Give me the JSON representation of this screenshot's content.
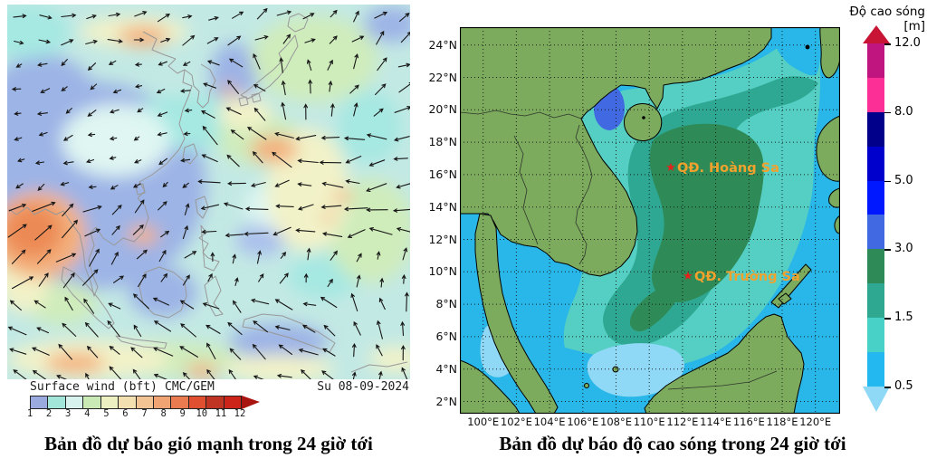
{
  "left": {
    "legend_label": "Surface wind (bft)",
    "legend_model": "CMC/GEM",
    "legend_date": "Su 08-09-2024",
    "scale_ticks": [
      "1",
      "2",
      "3",
      "4",
      "5",
      "6",
      "7",
      "8",
      "9",
      "10",
      "11",
      "12"
    ],
    "scale_colors": [
      "#9aaade",
      "#a2e6da",
      "#d8f2ee",
      "#c9eab5",
      "#edf0c0",
      "#f3e0b0",
      "#f3c493",
      "#f0a473",
      "#ea7a50",
      "#e14f31",
      "#c03424",
      "#cc2418"
    ],
    "scale_arrow_color": "#a81410",
    "caption": "Bản đồ dự báo gió mạnh trong 24 giờ tới"
  },
  "right": {
    "colorbar_title": "Độ cao sóng [m]",
    "colorbar_ticks": [
      "12.0",
      "8.0",
      "5.0",
      "3.0",
      "1.5",
      "0.5"
    ],
    "colorbar_colors": [
      "#c0147e",
      "#fb2f96",
      "#00008b",
      "#0000cd",
      "#0018ff",
      "#4169e1",
      "#2e8b57",
      "#2ea890",
      "#48d1c6",
      "#24b8f0"
    ],
    "colorbar_top_arrow": "#c81535",
    "colorbar_bottom_arrow": "#8fd9f6",
    "lat_labels": [
      "24°N",
      "22°N",
      "20°N",
      "18°N",
      "16°N",
      "14°N",
      "12°N",
      "10°N",
      "8°N",
      "6°N",
      "4°N",
      "2°N"
    ],
    "lon_labels": [
      "100°E",
      "102°E",
      "104°E",
      "106°E",
      "108°E",
      "110°E",
      "112°E",
      "114°E",
      "116°E",
      "118°E",
      "120°E"
    ],
    "markers": [
      {
        "label": "QĐ. Hoàng Sa"
      },
      {
        "label": "QĐ. Trường Sa"
      }
    ],
    "caption": "Bản đồ dự báo độ cao sóng trong 24 giờ tới"
  },
  "palette": {
    "sea_base": "#29b6e8",
    "sea_light": "#90d9f6",
    "sea_turquoise": "#55cfc3",
    "sea_teal": "#2fa893",
    "sea_green": "#2e8b57",
    "sea_gulf_blue": "#4169e1",
    "wind_arrow": "#161616",
    "coastline_left": "#999999",
    "marker_star": "#e32219",
    "marker_label": "#f2a12d"
  }
}
